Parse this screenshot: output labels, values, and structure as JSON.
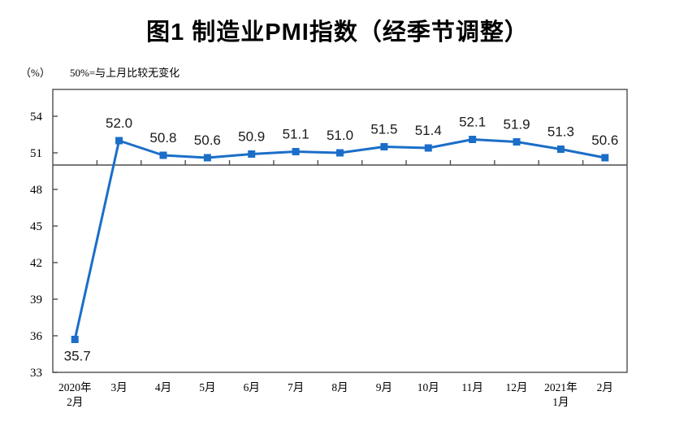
{
  "page": {
    "background": "#ffffff"
  },
  "chart_data": {
    "type": "line",
    "title": "图1 制造业PMI指数（经季节调整）",
    "unit_label": "（%）",
    "note": "50%=与上月比较无变化",
    "categories": [
      [
        "2020年",
        "2月"
      ],
      [
        "3月"
      ],
      [
        "4月"
      ],
      [
        "5月"
      ],
      [
        "6月"
      ],
      [
        "7月"
      ],
      [
        "8月"
      ],
      [
        "9月"
      ],
      [
        "10月"
      ],
      [
        "11月"
      ],
      [
        "12月"
      ],
      [
        "2021年",
        "1月"
      ],
      [
        "2月"
      ]
    ],
    "values": [
      35.7,
      52.0,
      50.8,
      50.6,
      50.9,
      51.1,
      51.0,
      51.5,
      51.4,
      52.1,
      51.9,
      51.3,
      50.6
    ],
    "y_ticks": [
      33,
      36,
      39,
      42,
      45,
      48,
      51,
      54
    ],
    "ylim": [
      33,
      56.2
    ],
    "reference_line": 50,
    "grid": false,
    "legend": "none",
    "marker": "square",
    "colors": {
      "line": "#1B6EC8",
      "axis": "#4d4d4d",
      "tick_text": "#000000",
      "data_label": "#1a1a1a",
      "title": "#000000"
    }
  }
}
